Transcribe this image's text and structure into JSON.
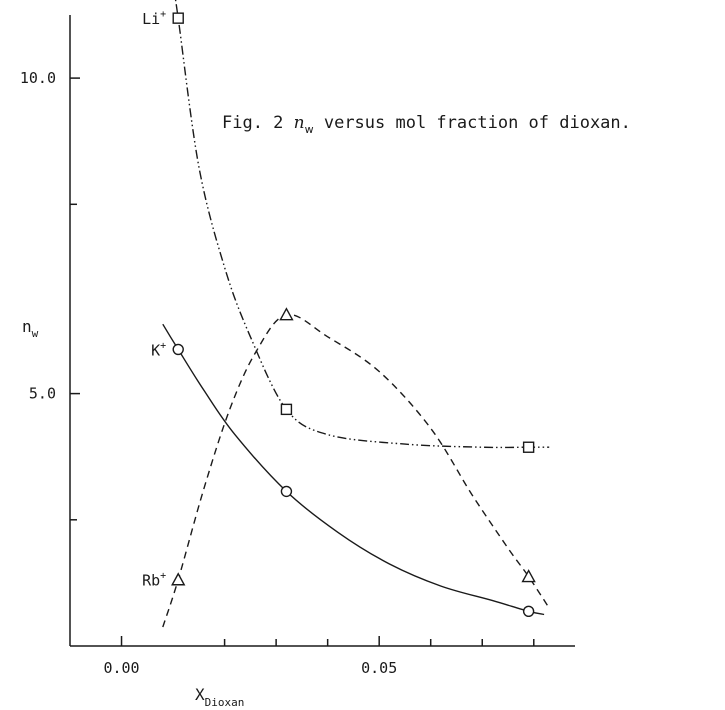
{
  "chart_data": {
    "type": "line",
    "caption": {
      "prefix": "Fig. 2",
      "symbol": "n",
      "symbol_sub": "w",
      "text": "versus mol fraction of dioxan."
    },
    "xlabel": "X",
    "xlabel_sub": "Dioxan",
    "ylabel": "n",
    "ylabel_sub": "w",
    "xlim": [
      -0.01,
      0.088
    ],
    "ylim": [
      1.0,
      11.0
    ],
    "x_ticks": [
      {
        "value": 0.0,
        "label": "0.00"
      },
      {
        "value": 0.05,
        "label": "0.05"
      }
    ],
    "x_minor_ticks": [
      0.02,
      0.03,
      0.04,
      0.06,
      0.07,
      0.08
    ],
    "y_ticks": [
      {
        "value": 5.0,
        "label": "5.0"
      },
      {
        "value": 10.0,
        "label": "10.0"
      }
    ],
    "y_minor_ticks": [
      3.0,
      8.0
    ],
    "grid": false,
    "series": [
      {
        "name": "Li",
        "name_sup": "+",
        "marker": "square",
        "style": "dash-dot-dot",
        "points": [
          [
            0.011,
            10.95
          ],
          [
            0.032,
            4.75
          ],
          [
            0.079,
            4.15
          ]
        ],
        "curve": [
          [
            0.01,
            11.5
          ],
          [
            0.011,
            10.95
          ],
          [
            0.015,
            8.6
          ],
          [
            0.02,
            7.0
          ],
          [
            0.025,
            5.9
          ],
          [
            0.032,
            4.75
          ],
          [
            0.04,
            4.35
          ],
          [
            0.055,
            4.2
          ],
          [
            0.07,
            4.15
          ],
          [
            0.079,
            4.15
          ],
          [
            0.083,
            4.15
          ]
        ]
      },
      {
        "name": "K",
        "name_sup": "+",
        "marker": "circle",
        "style": "solid",
        "points": [
          [
            0.011,
            5.7
          ],
          [
            0.032,
            3.45
          ],
          [
            0.079,
            1.55
          ]
        ],
        "curve": [
          [
            0.008,
            6.1
          ],
          [
            0.011,
            5.7
          ],
          [
            0.016,
            5.05
          ],
          [
            0.022,
            4.35
          ],
          [
            0.032,
            3.45
          ],
          [
            0.042,
            2.8
          ],
          [
            0.052,
            2.3
          ],
          [
            0.062,
            1.95
          ],
          [
            0.072,
            1.72
          ],
          [
            0.079,
            1.55
          ],
          [
            0.082,
            1.5
          ]
        ]
      },
      {
        "name": "Rb",
        "name_sup": "+",
        "marker": "triangle",
        "style": "dashed",
        "points": [
          [
            0.011,
            2.05
          ],
          [
            0.032,
            6.25
          ],
          [
            0.079,
            2.1
          ]
        ],
        "curve": [
          [
            0.008,
            1.3
          ],
          [
            0.011,
            2.05
          ],
          [
            0.016,
            3.5
          ],
          [
            0.021,
            4.75
          ],
          [
            0.026,
            5.65
          ],
          [
            0.032,
            6.25
          ],
          [
            0.04,
            5.9
          ],
          [
            0.05,
            5.35
          ],
          [
            0.06,
            4.45
          ],
          [
            0.068,
            3.4
          ],
          [
            0.075,
            2.55
          ],
          [
            0.079,
            2.1
          ],
          [
            0.083,
            1.6
          ]
        ]
      }
    ],
    "ion_labels": [
      {
        "series": "Li",
        "x": 0.011,
        "y": 10.95
      },
      {
        "series": "K",
        "x": 0.011,
        "y": 5.7
      },
      {
        "series": "Rb",
        "x": 0.011,
        "y": 2.05
      }
    ]
  }
}
